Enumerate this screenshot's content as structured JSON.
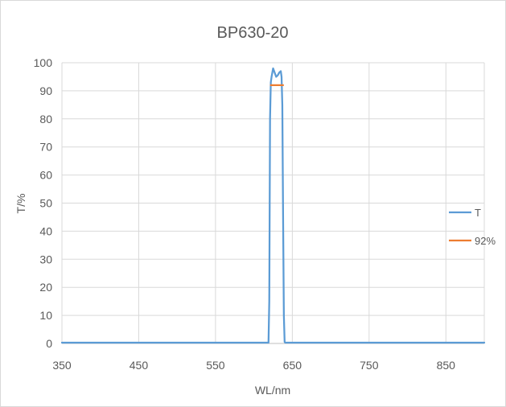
{
  "chart_data": {
    "type": "line",
    "title": "BP630-20",
    "xlabel": "WL/nm",
    "ylabel": "T/%",
    "xlim": [
      350,
      900
    ],
    "ylim": [
      0,
      100
    ],
    "x_ticks": [
      350,
      450,
      550,
      650,
      750,
      850
    ],
    "y_ticks": [
      0,
      10,
      20,
      30,
      40,
      50,
      60,
      70,
      80,
      90,
      100
    ],
    "grid": true,
    "legend_position": "right",
    "series": [
      {
        "name": "T",
        "color": "#5B9BD5",
        "x": [
          350,
          619,
          620,
          621,
          622,
          623,
          624,
          625,
          627,
          629,
          631,
          633,
          635,
          636,
          637,
          638,
          639,
          640,
          641,
          900
        ],
        "y": [
          0.3,
          0.3,
          15,
          80,
          93,
          95,
          96.5,
          98,
          96.5,
          95,
          95.5,
          96.5,
          97,
          95,
          85,
          45,
          10,
          0.5,
          0.3,
          0.3
        ]
      },
      {
        "name": "92%",
        "color": "#ED7D31",
        "x": [
          622,
          638
        ],
        "y": [
          92,
          92
        ]
      }
    ]
  }
}
